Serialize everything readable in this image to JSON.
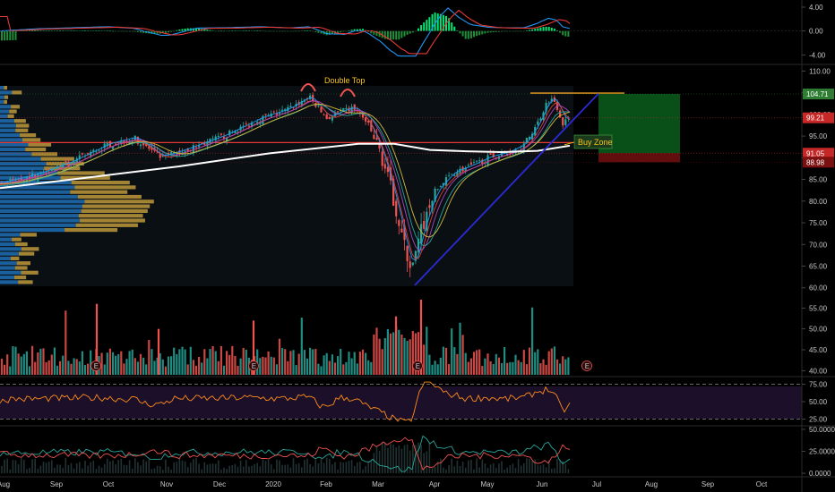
{
  "chart_data": {
    "type": "candlestick",
    "annotations": {
      "double_top": "Double Top",
      "buy_zone": "Buy Zone"
    },
    "earnings_marker": "E",
    "x_axis": {
      "month_labels": [
        "Aug",
        "Sep",
        "Oct",
        "Nov",
        "Dec",
        "2020",
        "Feb",
        "Mar",
        "Apr",
        "May",
        "Jun",
        "Jul",
        "Aug",
        "Sep",
        "Oct"
      ]
    },
    "macd_panel": {
      "y_ticks": [
        "4.00",
        "0.00",
        "-4.00"
      ],
      "y_range": [
        -4.4,
        4.6
      ]
    },
    "price_panel": {
      "y_ticks": [
        "110.00",
        "105.00",
        "100.00",
        "95.00",
        "90.00",
        "85.00",
        "80.00",
        "75.00",
        "70.00",
        "65.00",
        "60.00"
      ],
      "y_range": [
        58.5,
        110.5
      ],
      "price_tags": [
        {
          "label": "104.71",
          "value": 104.71,
          "color": "#2e7d32"
        },
        {
          "label": "99.21",
          "value": 99.21,
          "color": "#c62828"
        },
        {
          "label": "91.05",
          "value": 91.05,
          "color": "#c62828"
        },
        {
          "label": "88.98",
          "value": 88.98,
          "color": "#7b1010"
        }
      ],
      "resistance_level": 93.5,
      "target_level": 104.71,
      "stop_level": 88.98,
      "entry_level": 91.05
    },
    "volume_panel": {
      "y_ticks": [
        "55.00",
        "50.00",
        "45.00",
        "40.00"
      ],
      "y_range": [
        39.0,
        57.0
      ]
    },
    "rsi_panel": {
      "y_ticks": [
        "75.00",
        "50.00",
        "25.00"
      ],
      "y_range": [
        18,
        82
      ],
      "bands": [
        75,
        25
      ]
    },
    "dmi_panel": {
      "y_ticks": [
        "50.0000",
        "25.0000",
        "0.0000"
      ],
      "y_range": [
        -2,
        52
      ]
    },
    "colors": {
      "up": "#26a69a",
      "down": "#ef5350",
      "ma_white": "#ffffff",
      "trend_line": "#2b2bd6",
      "resistance": "#e53935",
      "annotation": "#f5c518",
      "macd_fast": "#2196f3",
      "macd_slow": "#e53935",
      "hist_positive": "#00e676",
      "rsi": "#ff8c1a"
    }
  }
}
